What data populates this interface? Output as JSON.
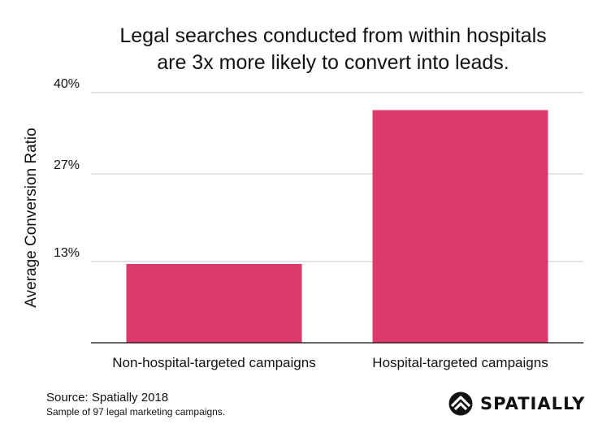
{
  "chart_data": {
    "type": "bar",
    "title_lines": [
      "Legal searches conducted from within hospitals",
      "are 3x more likely to convert into leads."
    ],
    "xlabel": "",
    "ylabel": "Average Conversion Ratio",
    "categories": [
      "Non-hospital-targeted campaigns",
      "Hospital-targeted campaigns"
    ],
    "values": [
      12.6,
      37.2
    ],
    "ylim": [
      0,
      40
    ],
    "yticks": [
      13,
      27,
      40
    ],
    "ytick_labels": [
      "13%",
      "27%",
      "40%"
    ],
    "grid": true,
    "legend": "none",
    "bar_color": "#dc3a6a",
    "grid_color": "#cccccc"
  },
  "footer": {
    "source": "Source: Spatially 2018",
    "note": "Sample of 97 legal marketing campaigns."
  },
  "brand": {
    "name": "SPATIALLY",
    "icon": "spatially-logo-icon"
  }
}
